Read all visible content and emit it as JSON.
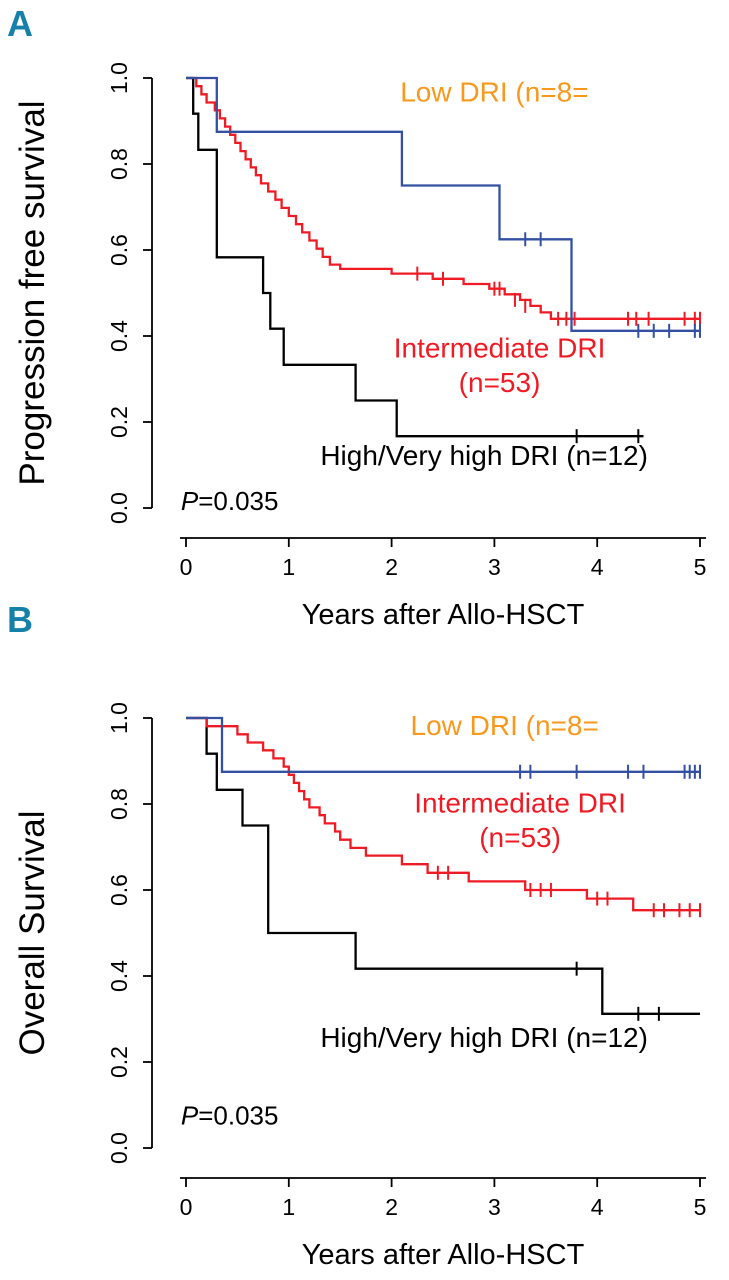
{
  "colors": {
    "panel_letter": "#1581aa",
    "low_curve": "#3350a2",
    "low_label": "#f8981d",
    "intermediate": "#ef1a23",
    "high": "#000000"
  },
  "chart_data": [
    {
      "type": "line",
      "subtype": "kaplan-meier-step",
      "letter": "A",
      "xlabel": "Years after Allo-HSCT",
      "ylabel": "Progression free survival",
      "xlim": [
        0,
        5
      ],
      "ylim": [
        0.0,
        1.0
      ],
      "x_ticks": [
        "0",
        "1",
        "2",
        "3",
        "4",
        "5"
      ],
      "y_ticks": [
        "0.0",
        "0.2",
        "0.4",
        "0.6",
        "0.8",
        "1.0"
      ],
      "grid": false,
      "p_italic": "P",
      "p_rest": "=0.035",
      "p_pos": {
        "x": -0.05,
        "y": -0.005
      },
      "annotations": [
        {
          "text": "Low DRI (n=8=",
          "x": 3.0,
          "y": 0.945,
          "color": "#f8981d",
          "size": 28
        },
        {
          "text": "Intermediate DRI",
          "x": 3.05,
          "y": 0.35,
          "color": "#ef1a23",
          "size": 28
        },
        {
          "text": "(n=53)",
          "x": 3.05,
          "y": 0.27,
          "color": "#ef1a23",
          "size": 28
        },
        {
          "text": "High/Very high DRI (n=12)",
          "x": 2.9,
          "y": 0.1,
          "color": "#000000",
          "size": 28
        }
      ],
      "series": [
        {
          "key": "high",
          "name": "High/Very high DRI (n=12)",
          "color": "#000000",
          "steps": [
            [
              0,
              1.0
            ],
            [
              0.07,
              0.917
            ],
            [
              0.12,
              0.833
            ],
            [
              0.3,
              0.583
            ],
            [
              0.75,
              0.5
            ],
            [
              0.82,
              0.417
            ],
            [
              0.95,
              0.333
            ],
            [
              1.65,
              0.25
            ],
            [
              2.05,
              0.167
            ],
            [
              4.45,
              0.167
            ]
          ],
          "censors": [
            [
              3.8,
              0.167
            ],
            [
              4.4,
              0.167
            ]
          ]
        },
        {
          "key": "intermediate",
          "name": "Intermediate DRI (n=53)",
          "color": "#ef1a23",
          "steps": [
            [
              0,
              1.0
            ],
            [
              0.1,
              0.981
            ],
            [
              0.15,
              0.962
            ],
            [
              0.2,
              0.943
            ],
            [
              0.28,
              0.925
            ],
            [
              0.33,
              0.906
            ],
            [
              0.38,
              0.887
            ],
            [
              0.43,
              0.868
            ],
            [
              0.48,
              0.849
            ],
            [
              0.53,
              0.83
            ],
            [
              0.58,
              0.811
            ],
            [
              0.63,
              0.792
            ],
            [
              0.68,
              0.774
            ],
            [
              0.73,
              0.755
            ],
            [
              0.8,
              0.736
            ],
            [
              0.87,
              0.717
            ],
            [
              0.93,
              0.698
            ],
            [
              1.0,
              0.679
            ],
            [
              1.07,
              0.66
            ],
            [
              1.13,
              0.641
            ],
            [
              1.2,
              0.622
            ],
            [
              1.27,
              0.603
            ],
            [
              1.33,
              0.584
            ],
            [
              1.4,
              0.566
            ],
            [
              1.5,
              0.556
            ],
            [
              2.0,
              0.545
            ],
            [
              2.4,
              0.533
            ],
            [
              2.7,
              0.521
            ],
            [
              2.95,
              0.51
            ],
            [
              3.1,
              0.497
            ],
            [
              3.25,
              0.484
            ],
            [
              3.35,
              0.47
            ],
            [
              3.45,
              0.455
            ],
            [
              3.55,
              0.44
            ],
            [
              5.0,
              0.44
            ]
          ],
          "censors": [
            [
              2.25,
              0.545
            ],
            [
              2.5,
              0.533
            ],
            [
              3.0,
              0.51
            ],
            [
              3.05,
              0.51
            ],
            [
              3.2,
              0.484
            ],
            [
              3.3,
              0.47
            ],
            [
              3.62,
              0.44
            ],
            [
              3.7,
              0.44
            ],
            [
              3.78,
              0.44
            ],
            [
              4.3,
              0.44
            ],
            [
              4.38,
              0.44
            ],
            [
              4.5,
              0.44
            ],
            [
              4.85,
              0.44
            ],
            [
              4.95,
              0.44
            ],
            [
              5.0,
              0.44
            ]
          ]
        },
        {
          "key": "low",
          "name": "Low DRI (n=8)",
          "color": "#3350a2",
          "steps": [
            [
              0,
              1.0
            ],
            [
              0.3,
              0.875
            ],
            [
              2.1,
              0.75
            ],
            [
              3.05,
              0.625
            ],
            [
              3.75,
              0.412
            ],
            [
              5.0,
              0.412
            ]
          ],
          "censors": [
            [
              3.3,
              0.625
            ],
            [
              3.45,
              0.625
            ],
            [
              4.4,
              0.412
            ],
            [
              4.55,
              0.412
            ],
            [
              4.7,
              0.412
            ],
            [
              4.95,
              0.412
            ],
            [
              5.0,
              0.412
            ]
          ]
        }
      ]
    },
    {
      "type": "line",
      "subtype": "kaplan-meier-step",
      "letter": "B",
      "xlabel": "Years after Allo-HSCT",
      "ylabel": "Overall Survival",
      "xlim": [
        0,
        5
      ],
      "ylim": [
        0.0,
        1.0
      ],
      "x_ticks": [
        "0",
        "1",
        "2",
        "3",
        "4",
        "5"
      ],
      "y_ticks": [
        "0.0",
        "0.2",
        "0.4",
        "0.6",
        "0.8",
        "1.0"
      ],
      "grid": false,
      "p_italic": "P",
      "p_rest": "=0.035",
      "p_pos": {
        "x": -0.05,
        "y": 0.055
      },
      "annotations": [
        {
          "text": "Low DRI (n=8=",
          "x": 3.1,
          "y": 0.96,
          "color": "#f8981d",
          "size": 28
        },
        {
          "text": "Intermediate DRI",
          "x": 3.25,
          "y": 0.78,
          "color": "#ef1a23",
          "size": 28
        },
        {
          "text": "(n=53)",
          "x": 3.25,
          "y": 0.7,
          "color": "#ef1a23",
          "size": 28
        },
        {
          "text": "High/Very high DRI (n=12)",
          "x": 2.9,
          "y": 0.235,
          "color": "#000000",
          "size": 28
        }
      ],
      "series": [
        {
          "key": "high",
          "name": "High/Very high DRI (n=12)",
          "color": "#000000",
          "steps": [
            [
              0,
              1.0
            ],
            [
              0.2,
              0.917
            ],
            [
              0.3,
              0.833
            ],
            [
              0.55,
              0.75
            ],
            [
              0.8,
              0.5
            ],
            [
              1.65,
              0.417
            ],
            [
              4.05,
              0.312
            ],
            [
              5.0,
              0.312
            ]
          ],
          "censors": [
            [
              3.8,
              0.417
            ],
            [
              4.4,
              0.312
            ],
            [
              4.6,
              0.312
            ]
          ]
        },
        {
          "key": "intermediate",
          "name": "Intermediate DRI (n=53)",
          "color": "#ef1a23",
          "steps": [
            [
              0,
              1.0
            ],
            [
              0.2,
              0.981
            ],
            [
              0.5,
              0.962
            ],
            [
              0.6,
              0.943
            ],
            [
              0.75,
              0.925
            ],
            [
              0.85,
              0.906
            ],
            [
              0.95,
              0.887
            ],
            [
              1.0,
              0.868
            ],
            [
              1.05,
              0.849
            ],
            [
              1.1,
              0.83
            ],
            [
              1.15,
              0.811
            ],
            [
              1.2,
              0.792
            ],
            [
              1.3,
              0.774
            ],
            [
              1.35,
              0.755
            ],
            [
              1.45,
              0.736
            ],
            [
              1.5,
              0.717
            ],
            [
              1.6,
              0.698
            ],
            [
              1.75,
              0.68
            ],
            [
              2.1,
              0.66
            ],
            [
              2.35,
              0.64
            ],
            [
              2.75,
              0.62
            ],
            [
              3.3,
              0.6
            ],
            [
              3.9,
              0.58
            ],
            [
              4.35,
              0.553
            ],
            [
              5.0,
              0.553
            ]
          ],
          "censors": [
            [
              2.45,
              0.64
            ],
            [
              2.55,
              0.64
            ],
            [
              3.35,
              0.6
            ],
            [
              3.45,
              0.6
            ],
            [
              3.55,
              0.6
            ],
            [
              4.0,
              0.58
            ],
            [
              4.1,
              0.58
            ],
            [
              4.55,
              0.553
            ],
            [
              4.65,
              0.553
            ],
            [
              4.8,
              0.553
            ],
            [
              4.9,
              0.553
            ],
            [
              5.0,
              0.553
            ]
          ]
        },
        {
          "key": "low",
          "name": "Low DRI (n=8)",
          "color": "#3350a2",
          "steps": [
            [
              0,
              1.0
            ],
            [
              0.35,
              0.875
            ],
            [
              5.0,
              0.875
            ]
          ],
          "censors": [
            [
              3.25,
              0.875
            ],
            [
              3.35,
              0.875
            ],
            [
              3.8,
              0.875
            ],
            [
              4.3,
              0.875
            ],
            [
              4.45,
              0.875
            ],
            [
              4.85,
              0.875
            ],
            [
              4.9,
              0.875
            ],
            [
              4.95,
              0.875
            ],
            [
              5.0,
              0.875
            ]
          ]
        }
      ]
    }
  ]
}
